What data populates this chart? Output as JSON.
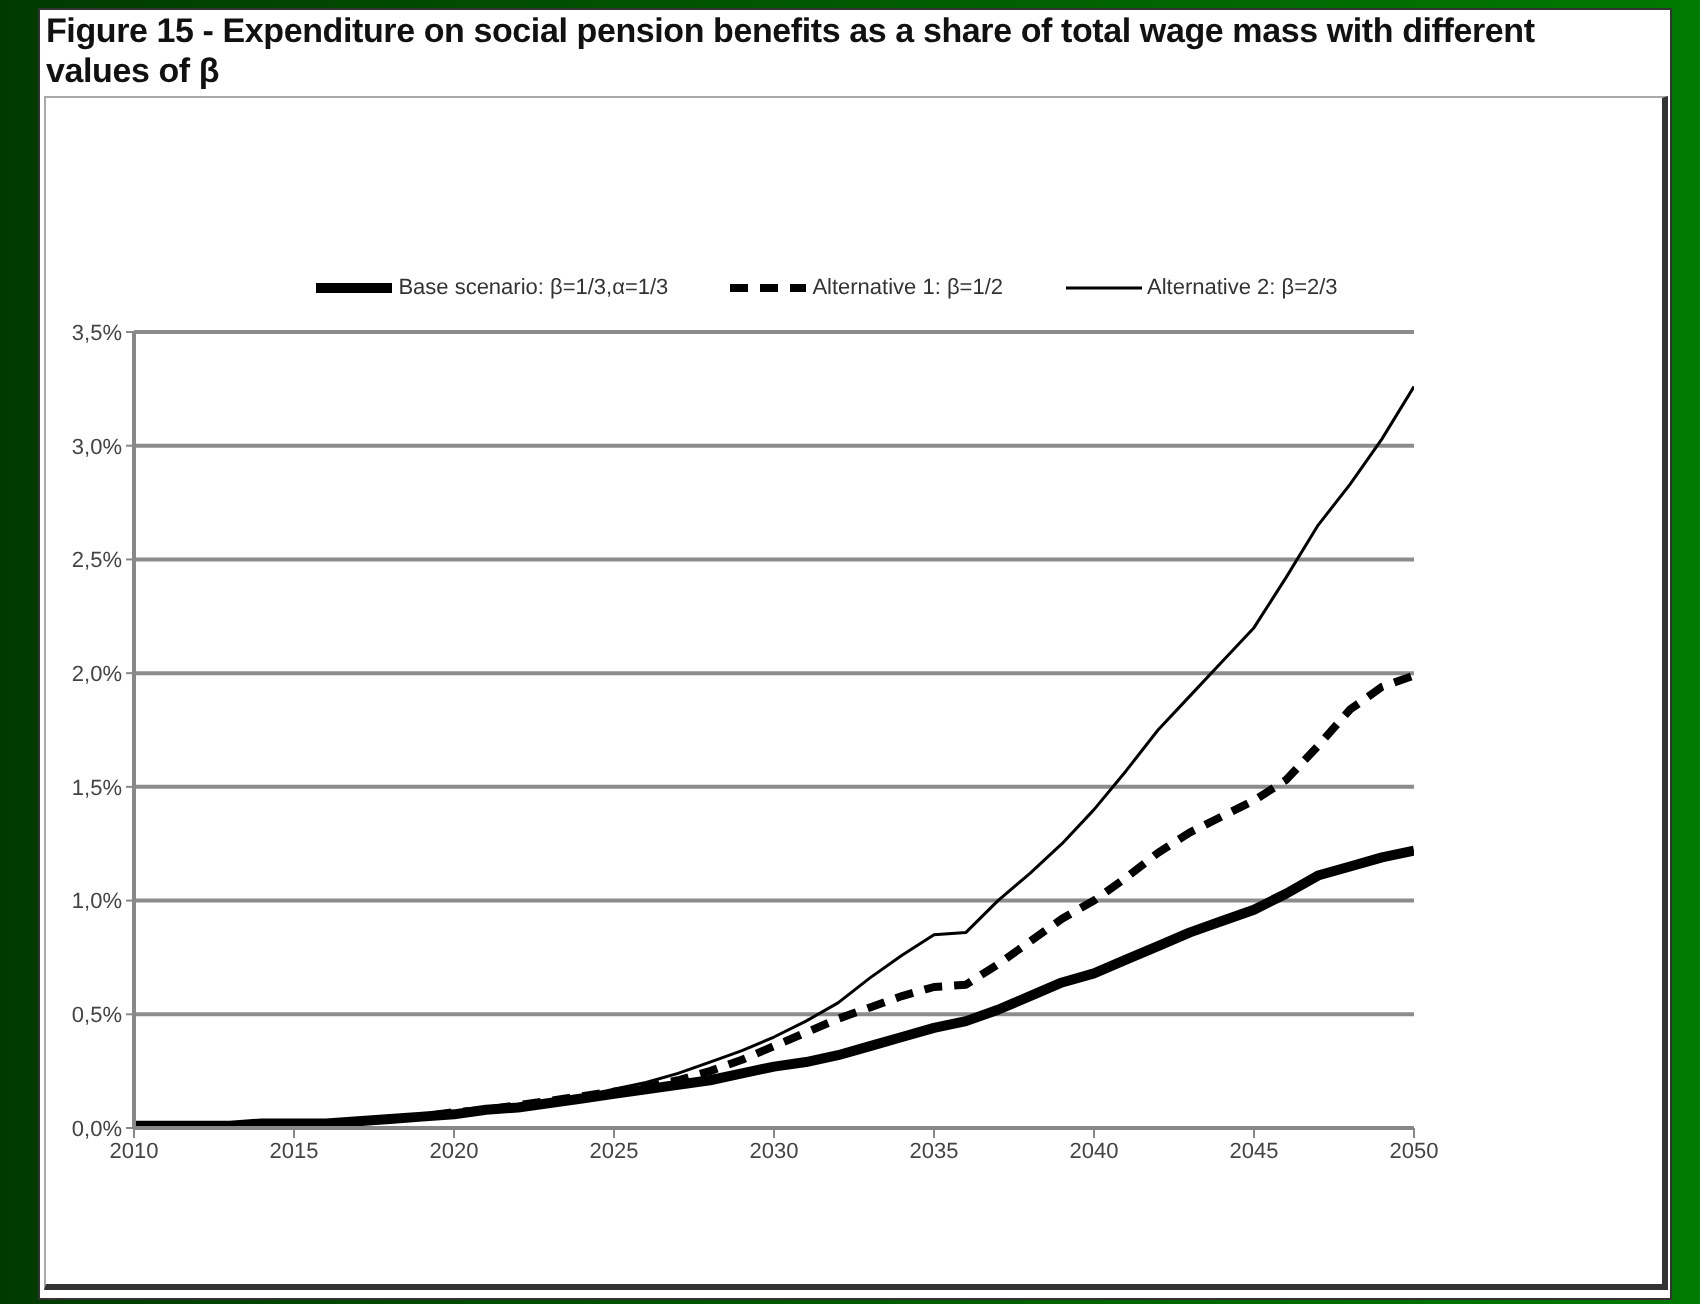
{
  "chart_data": {
    "type": "line",
    "title": "Figure 15 - Expenditure on social pension benefits as a share of total wage mass with different values of β",
    "x": [
      2010,
      2011,
      2012,
      2013,
      2014,
      2015,
      2016,
      2017,
      2018,
      2019,
      2020,
      2021,
      2022,
      2023,
      2024,
      2025,
      2026,
      2027,
      2028,
      2029,
      2030,
      2031,
      2032,
      2033,
      2034,
      2035,
      2036,
      2037,
      2038,
      2039,
      2040,
      2041,
      2042,
      2043,
      2044,
      2045,
      2046,
      2047,
      2048,
      2049,
      2050
    ],
    "series": [
      {
        "name": "Base scenario: β=1/3,α=1/3",
        "color": "#000000",
        "line_style": "solid",
        "values": [
          0.01,
          0.01,
          0.01,
          0.01,
          0.02,
          0.02,
          0.02,
          0.03,
          0.04,
          0.05,
          0.06,
          0.08,
          0.09,
          0.11,
          0.13,
          0.15,
          0.17,
          0.19,
          0.21,
          0.24,
          0.27,
          0.29,
          0.32,
          0.36,
          0.4,
          0.44,
          0.47,
          0.52,
          0.58,
          0.64,
          0.68,
          0.74,
          0.8,
          0.86,
          0.91,
          0.96,
          1.03,
          1.11,
          1.15,
          1.19,
          1.22
        ]
      },
      {
        "name": "Alternative 1: β=1/2",
        "color": "#000000",
        "line_style": "dashed",
        "values": [
          0.01,
          0.01,
          0.01,
          0.01,
          0.02,
          0.02,
          0.02,
          0.03,
          0.04,
          0.05,
          0.07,
          0.08,
          0.1,
          0.12,
          0.14,
          0.16,
          0.18,
          0.21,
          0.25,
          0.3,
          0.36,
          0.42,
          0.48,
          0.53,
          0.58,
          0.62,
          0.63,
          0.72,
          0.82,
          0.92,
          1.0,
          1.1,
          1.21,
          1.3,
          1.37,
          1.44,
          1.53,
          1.68,
          1.84,
          1.94,
          1.99
        ]
      },
      {
        "name": "Alternative 2: β=2/3",
        "color": "#000000",
        "line_style": "solid",
        "values": [
          0.01,
          0.01,
          0.01,
          0.01,
          0.02,
          0.02,
          0.02,
          0.03,
          0.04,
          0.05,
          0.07,
          0.08,
          0.1,
          0.12,
          0.14,
          0.17,
          0.2,
          0.24,
          0.29,
          0.34,
          0.4,
          0.47,
          0.55,
          0.66,
          0.76,
          0.85,
          0.86,
          1.0,
          1.12,
          1.25,
          1.4,
          1.57,
          1.75,
          1.9,
          2.05,
          2.2,
          2.42,
          2.65,
          2.83,
          3.03,
          3.26
        ]
      }
    ],
    "xlim": [
      2010,
      2050
    ],
    "xticks": [
      2010,
      2015,
      2020,
      2025,
      2030,
      2035,
      2040,
      2045,
      2050
    ],
    "ylim": [
      0,
      3.5
    ],
    "yticks": [
      {
        "value": 0,
        "label": "0,0%"
      },
      {
        "value": 0.5,
        "label": "0,5%"
      },
      {
        "value": 1,
        "label": "1,0%"
      },
      {
        "value": 1.5,
        "label": "1,5%"
      },
      {
        "value": 2,
        "label": "2,0%"
      },
      {
        "value": 2.5,
        "label": "2,5%"
      },
      {
        "value": 3,
        "label": "3,0%"
      },
      {
        "value": 3.5,
        "label": "3,5%"
      }
    ],
    "grid": "y",
    "legend": "top",
    "marker": "none"
  }
}
